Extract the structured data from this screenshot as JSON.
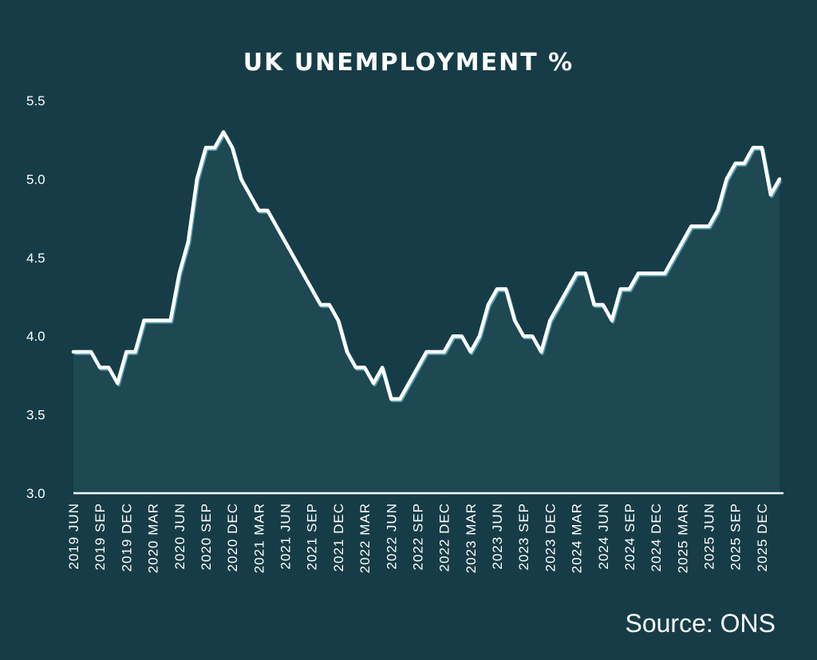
{
  "chart_data": {
    "type": "line",
    "title": "UK UNEMPLOYMENT %",
    "source": "Source: ONS",
    "xlabel": "",
    "ylabel": "",
    "ylim": [
      3.0,
      5.5
    ],
    "yticks": [
      "3.0",
      "3.5",
      "4.0",
      "4.5",
      "5.0",
      "5.5"
    ],
    "x": [
      "2019 JUN",
      "2019 JUL",
      "2019 AUG",
      "2019 SEP",
      "2019 OCT",
      "2019 NOV",
      "2019 DEC",
      "2020 JAN",
      "2020 FEB",
      "2020 MAR",
      "2020 APR",
      "2020 MAY",
      "2020 JUN",
      "2020 JUL",
      "2020 AUG",
      "2020 SEP",
      "2020 OCT",
      "2020 NOV",
      "2020 DEC",
      "2021 JAN",
      "2021 FEB",
      "2021 MAR",
      "2021 APR",
      "2021 MAY",
      "2021 JUN",
      "2021 JUL",
      "2021 AUG",
      "2021 SEP",
      "2021 OCT",
      "2021 NOV",
      "2021 DEC",
      "2022 JAN",
      "2022 FEB",
      "2022 MAR",
      "2022 APR",
      "2022 MAY",
      "2022 JUN",
      "2022 JUL",
      "2022 AUG",
      "2022 SEP",
      "2022 OCT",
      "2022 NOV",
      "2022 DEC",
      "2023 JAN",
      "2023 FEB",
      "2023 MAR",
      "2023 APR",
      "2023 MAY",
      "2023 JUN",
      "2023 JUL",
      "2023 AUG",
      "2023 SEP",
      "2023 OCT",
      "2023 NOV",
      "2023 DEC",
      "2024 JAN",
      "2024 FEB",
      "2024 MAR",
      "2024 APR",
      "2024 MAY",
      "2024 JUN",
      "2024 JUL",
      "2024 AUG",
      "2024 SEP",
      "2024 OCT",
      "2024 NOV",
      "2024 DEC",
      "2025 JAN",
      "2025 FEB",
      "2025 MAR",
      "2025 APR",
      "2025 MAY",
      "2025 JUN",
      "2025 JUL",
      "2025 AUG",
      "2025 SEP",
      "2025 OCT",
      "2025 NOV",
      "2025 DEC",
      "2026 JAN",
      "2026 FEB"
    ],
    "xtick_labels": [
      "2019 JUN",
      "2019 SEP",
      "2019 DEC",
      "2020 MAR",
      "2020 JUN",
      "2020 SEP",
      "2020 DEC",
      "2021 MAR",
      "2021 JUN",
      "2021 SEP",
      "2021 DEC",
      "2022 MAR",
      "2022 JUN",
      "2022 SEP",
      "2022 DEC",
      "2023 MAR",
      "2023 JUN",
      "2023 SEP",
      "2023 DEC",
      "2024 MAR",
      "2024 JUN",
      "2024 SEP",
      "2024 DEC",
      "2025 MAR",
      "2025 JUN",
      "2025 SEP",
      "2025 DEC"
    ],
    "series": [
      {
        "values": [
          3.9,
          3.9,
          3.9,
          3.8,
          3.8,
          3.7,
          3.9,
          3.9,
          4.1,
          4.1,
          4.1,
          4.1,
          4.4,
          4.6,
          5.0,
          5.2,
          5.2,
          5.3,
          5.2,
          5.0,
          4.9,
          4.8,
          4.8,
          4.7,
          4.6,
          4.5,
          4.4,
          4.3,
          4.2,
          4.2,
          4.1,
          3.9,
          3.8,
          3.8,
          3.7,
          3.8,
          3.6,
          3.6,
          3.7,
          3.8,
          3.9,
          3.9,
          3.9,
          4.0,
          4.0,
          3.9,
          4.0,
          4.2,
          4.3,
          4.3,
          4.1,
          4.0,
          4.0,
          3.9,
          4.1,
          4.2,
          4.3,
          4.4,
          4.4,
          4.2,
          4.2,
          4.1,
          4.3,
          4.3,
          4.4,
          4.4,
          4.4,
          4.4,
          4.5,
          4.6,
          4.7,
          4.7,
          4.7,
          4.8,
          5.0,
          5.1,
          5.1,
          5.2,
          5.2,
          4.9,
          5.0
        ]
      }
    ],
    "grid": false,
    "colors": {
      "background": "#163d47",
      "line": "#ffffff",
      "line_shadow": "#5fb3c4",
      "fill": "#2f5e68"
    }
  }
}
